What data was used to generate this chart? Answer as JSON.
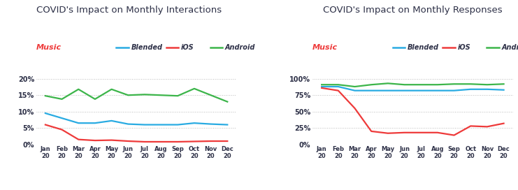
{
  "months": [
    "Jan\n20",
    "Feb\n20",
    "Mar\n20",
    "Apr\n20",
    "May\n20",
    "Jun\n20",
    "Jul\n20",
    "Aug\n20",
    "Sep\n20",
    "Oct\n20",
    "Nov\n20",
    "Dec\n20"
  ],
  "left": {
    "title": "COVID's Impact on Monthly Interactions",
    "title_align": "left",
    "blended": [
      9.5,
      8.0,
      6.5,
      6.5,
      7.2,
      6.2,
      6.0,
      6.0,
      6.0,
      6.5,
      6.2,
      6.0
    ],
    "ios": [
      6.0,
      4.5,
      1.5,
      1.2,
      1.3,
      1.0,
      0.8,
      0.8,
      0.8,
      0.9,
      1.0,
      1.0
    ],
    "android": [
      14.8,
      13.8,
      16.8,
      13.8,
      16.8,
      15.0,
      15.2,
      15.0,
      14.8,
      17.0,
      15.0,
      13.0
    ],
    "ylim": [
      0,
      22
    ],
    "yticks": [
      0,
      5,
      10,
      15,
      20
    ],
    "yticklabels": [
      "0%",
      "5%",
      "10%",
      "15%",
      "20%"
    ]
  },
  "right": {
    "title": "COVID's Impact on Monthly Responses",
    "title_align": "center",
    "blended": [
      88,
      88,
      82,
      82,
      82,
      82,
      82,
      82,
      82,
      84,
      84,
      83
    ],
    "ios": [
      86,
      82,
      55,
      20,
      17,
      18,
      18,
      18,
      14,
      28,
      27,
      32
    ],
    "android": [
      91,
      91,
      88,
      91,
      93,
      91,
      91,
      91,
      92,
      92,
      91,
      92
    ],
    "ylim": [
      0,
      110
    ],
    "yticks": [
      0,
      25,
      50,
      75,
      100
    ],
    "yticklabels": [
      "0%",
      "25%",
      "50%",
      "75%",
      "100%"
    ]
  },
  "blended_color": "#29ABE2",
  "ios_color": "#EE3A3A",
  "android_color": "#3CB54A",
  "music_color": "#EE3A3A",
  "title_color": "#2d3047",
  "tick_color": "#2d3047",
  "grid_color": "#bbbbbb",
  "bg_color": "#ffffff",
  "linewidth": 1.6
}
